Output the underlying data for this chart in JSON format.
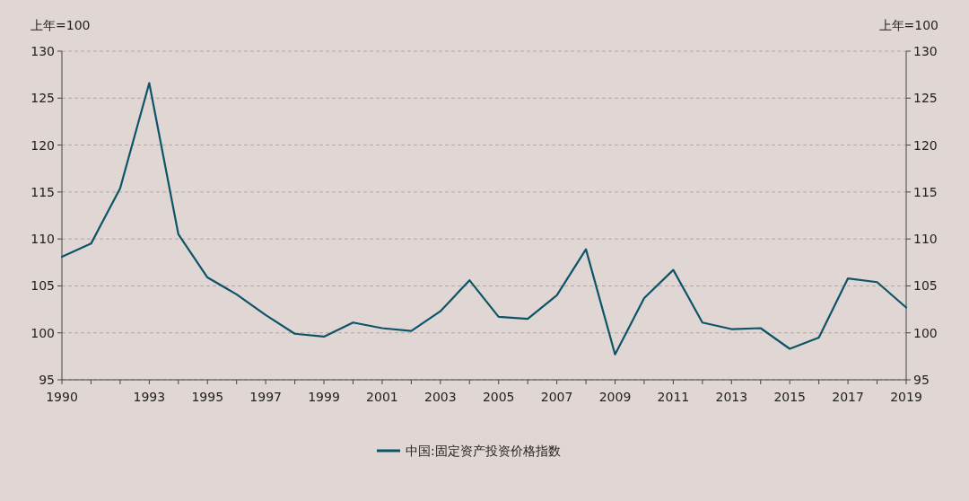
{
  "chart_data": {
    "type": "line",
    "ylabel": "上年=100",
    "y2label": "上年=100",
    "x": [
      1990,
      1991,
      1992,
      1993,
      1994,
      1995,
      1996,
      1997,
      1998,
      1999,
      2000,
      2001,
      2002,
      2003,
      2004,
      2005,
      2006,
      2007,
      2008,
      2009,
      2010,
      2011,
      2012,
      2013,
      2014,
      2015,
      2016,
      2017,
      2018,
      2019
    ],
    "series": [
      {
        "name": "中国:固定资产投资价格指数",
        "color": "#0e5468",
        "values": [
          108.1,
          109.5,
          115.4,
          126.6,
          110.5,
          105.9,
          104.1,
          101.9,
          99.9,
          99.6,
          101.1,
          100.5,
          100.2,
          102.3,
          105.6,
          101.7,
          101.5,
          104.0,
          108.9,
          97.7,
          103.7,
          106.7,
          101.1,
          100.4,
          100.5,
          98.3,
          99.5,
          105.8,
          105.4,
          102.7
        ]
      }
    ],
    "xlim": [
      1990,
      2019
    ],
    "xticks": [
      1990,
      {
        "value": 1991,
        "label": null
      },
      {
        "value": 1992,
        "label": null
      },
      1993,
      {
        "value": 1994,
        "label": null
      },
      1995,
      {
        "value": 1996,
        "label": null
      },
      1997,
      {
        "value": 1998,
        "label": null
      },
      1999,
      {
        "value": 2000,
        "label": null
      },
      2001,
      {
        "value": 2002,
        "label": null
      },
      2003,
      {
        "value": 2004,
        "label": null
      },
      2005,
      {
        "value": 2006,
        "label": null
      },
      2007,
      {
        "value": 2008,
        "label": null
      },
      2009,
      {
        "value": 2010,
        "label": null
      },
      2011,
      {
        "value": 2012,
        "label": null
      },
      2013,
      {
        "value": 2014,
        "label": null
      },
      2015,
      {
        "value": 2016,
        "label": null
      },
      2017,
      {
        "value": 2018,
        "label": null
      },
      2019
    ],
    "ylim": [
      95,
      130
    ],
    "yticks": [
      95,
      100,
      105,
      110,
      115,
      120,
      125,
      130
    ],
    "y2lim": [
      95,
      130
    ],
    "y2ticks": [
      95,
      100,
      105,
      110,
      115,
      120,
      125,
      130
    ],
    "grid": "y",
    "legend": "bottom",
    "marker": "none",
    "line_style": "solid"
  }
}
